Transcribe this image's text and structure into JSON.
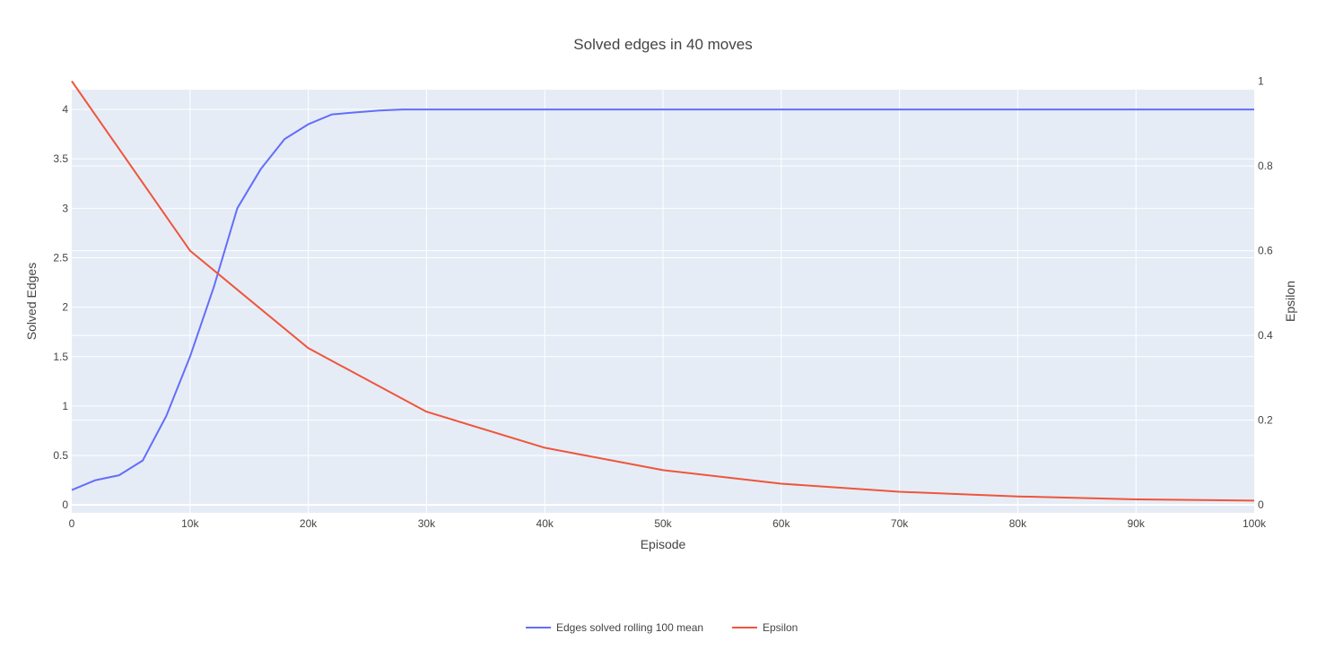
{
  "chart_data": {
    "type": "line",
    "title": "Solved edges in 40 moves",
    "xlabel": "Episode",
    "ylabel": "Solved Edges",
    "y2label": "Epsilon",
    "xlim": [
      0,
      100000
    ],
    "ylim": [
      -0.08,
      4.2
    ],
    "y2lim": [
      -0.0187,
      0.98
    ],
    "x_ticks": [
      0,
      10000,
      20000,
      30000,
      40000,
      50000,
      60000,
      70000,
      80000,
      90000,
      100000
    ],
    "x_tick_labels": [
      "0",
      "10k",
      "20k",
      "30k",
      "40k",
      "50k",
      "60k",
      "70k",
      "80k",
      "90k",
      "100k"
    ],
    "y_ticks": [
      0,
      0.5,
      1,
      1.5,
      2,
      2.5,
      3,
      3.5,
      4
    ],
    "y_tick_labels": [
      "0",
      "0.5",
      "1",
      "1.5",
      "2",
      "2.5",
      "3",
      "3.5",
      "4"
    ],
    "y2_ticks": [
      0,
      0.2,
      0.4,
      0.6,
      0.8,
      1
    ],
    "y2_tick_labels": [
      "0",
      "0.2",
      "0.4",
      "0.6",
      "0.8",
      "1"
    ],
    "grid": true,
    "legend_position": "bottom-center",
    "series": [
      {
        "name": "Edges solved rolling 100 mean",
        "axis": "y",
        "color": "#636efa",
        "x": [
          0,
          2000,
          4000,
          6000,
          8000,
          10000,
          12000,
          14000,
          16000,
          18000,
          20000,
          22000,
          24000,
          26000,
          28000,
          30000,
          40000,
          50000,
          60000,
          70000,
          80000,
          90000,
          100000
        ],
        "y": [
          0.15,
          0.25,
          0.3,
          0.45,
          0.9,
          1.5,
          2.2,
          3.0,
          3.4,
          3.7,
          3.85,
          3.95,
          3.97,
          3.99,
          4.0,
          4.0,
          4.0,
          4.0,
          4.0,
          4.0,
          4.0,
          4.0,
          4.0
        ]
      },
      {
        "name": "Epsilon",
        "axis": "y2",
        "color": "#ef553b",
        "x": [
          0,
          10000,
          20000,
          30000,
          40000,
          50000,
          60000,
          70000,
          80000,
          90000,
          100000
        ],
        "y": [
          1.0,
          0.6,
          0.37,
          0.22,
          0.135,
          0.082,
          0.05,
          0.031,
          0.02,
          0.013,
          0.01
        ]
      }
    ]
  }
}
